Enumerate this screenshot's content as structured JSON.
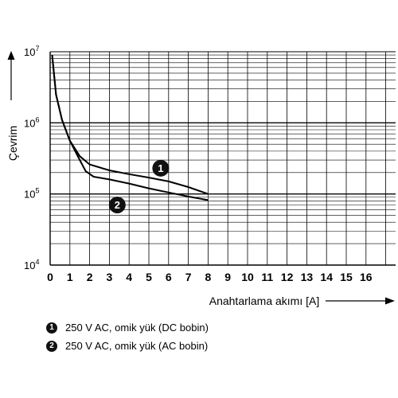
{
  "chart_data": {
    "type": "line",
    "xlabel": "Anahtarlama akımı [A]",
    "ylabel": "Çevrim",
    "x_ticks": [
      "0",
      "1",
      "2",
      "3",
      "4",
      "5",
      "6",
      "7",
      "8",
      "9",
      "10",
      "11",
      "12",
      "13",
      "14",
      "15",
      "16"
    ],
    "y_ticks": [
      {
        "value": 10000,
        "base": "10",
        "exp": "4"
      },
      {
        "value": 100000,
        "base": "10",
        "exp": "5"
      },
      {
        "value": 1000000,
        "base": "10",
        "exp": "6"
      },
      {
        "value": 10000000,
        "base": "10",
        "exp": "7"
      }
    ],
    "xlim": [
      0,
      17.5
    ],
    "ylim": [
      10000,
      10000000
    ],
    "y_scale": "log",
    "grid": true,
    "series": [
      {
        "marker": "1",
        "name": "250 V AC, omik yük (DC bobin)",
        "x": [
          0.1,
          0.3,
          0.6,
          1.0,
          1.5,
          2.0,
          3.0,
          4.0,
          5.0,
          6.0,
          7.0,
          8.0
        ],
        "y": [
          9000000,
          2500000,
          1100000,
          560000,
          340000,
          260000,
          215000,
          190000,
          170000,
          150000,
          125000,
          100000
        ]
      },
      {
        "marker": "2",
        "name": "250 V AC, omik yük (AC bobin)",
        "x": [
          0.1,
          0.3,
          0.6,
          1.0,
          1.5,
          1.8,
          2.2,
          3.0,
          4.0,
          5.0,
          6.0,
          7.0,
          8.0
        ],
        "y": [
          9000000,
          2500000,
          1100000,
          560000,
          300000,
          210000,
          175000,
          160000,
          140000,
          120000,
          105000,
          92000,
          82000
        ]
      }
    ],
    "legend": [
      {
        "marker": "1",
        "label": "250 V AC, omik yük (DC bobin)"
      },
      {
        "marker": "2",
        "label": "250 V AC, omik yük (AC bobin)"
      }
    ]
  }
}
